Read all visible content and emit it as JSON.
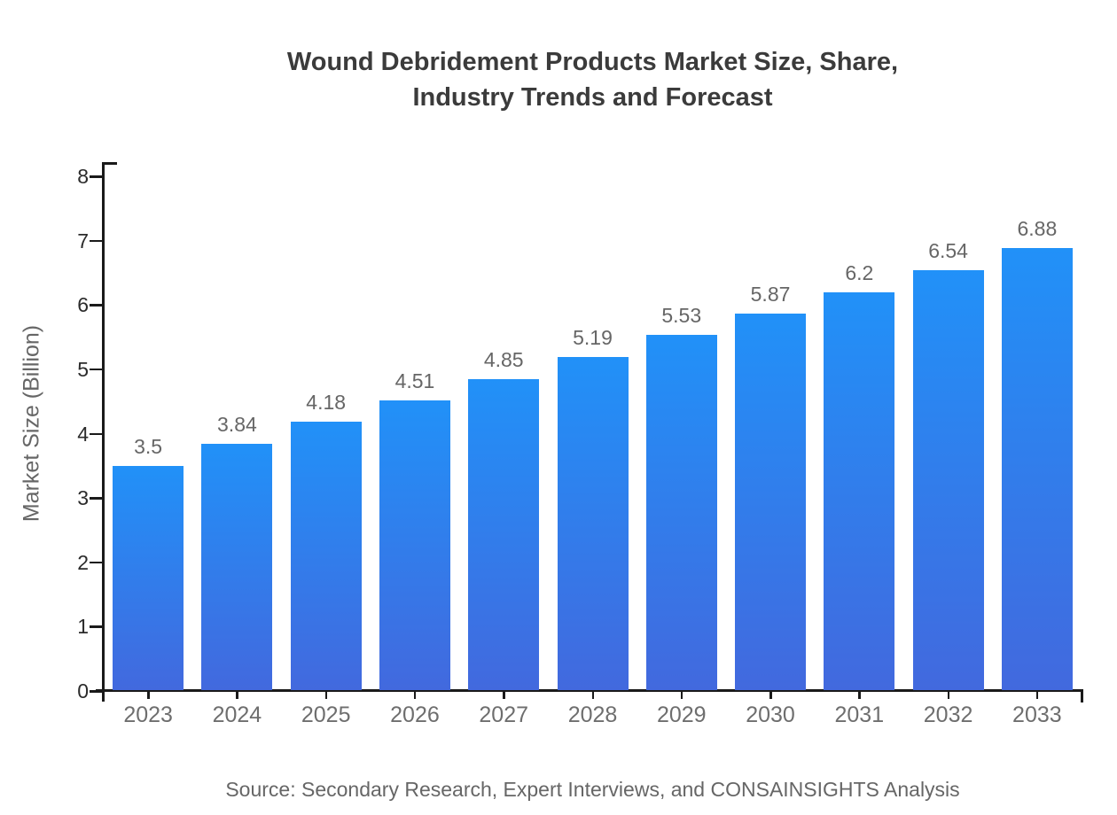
{
  "chart_data": {
    "type": "bar",
    "title": "Wound Debridement Products Market Size, Share, Industry Trends and Forecast",
    "title_lines": [
      "Wound Debridement Products Market Size, Share,",
      "Industry Trends and Forecast"
    ],
    "ylabel": "Market Size (Billion)",
    "xlabel": "",
    "categories": [
      "2023",
      "2024",
      "2025",
      "2026",
      "2027",
      "2028",
      "2029",
      "2030",
      "2031",
      "2032",
      "2033"
    ],
    "values": [
      3.5,
      3.84,
      4.18,
      4.51,
      4.85,
      5.19,
      5.53,
      5.87,
      6.2,
      6.54,
      6.88
    ],
    "ylim": [
      0,
      8
    ],
    "yticks": [
      0,
      1,
      2,
      3,
      4,
      5,
      6,
      7,
      8
    ],
    "grid": false,
    "legend": "none",
    "data_labels": true,
    "source_note": "Source: Secondary Research, Expert Interviews, and CONSAINSIGHTS Analysis",
    "colors": {
      "bar_gradient_top": "#2191f8",
      "bar_gradient_bottom": "#4269de",
      "axis": "#1a1a1a",
      "y_tick_label": "#2b2b2b",
      "category_label": "#6e6e6e",
      "value_label": "#666666",
      "title": "#3b3b3b",
      "source_text": "#666666",
      "background": "#ffffff"
    }
  }
}
